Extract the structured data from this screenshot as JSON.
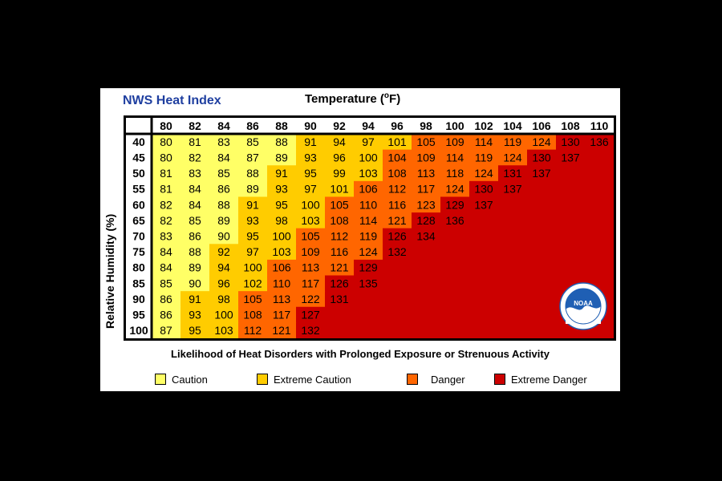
{
  "header": {
    "title": "NWS Heat Index",
    "temperature_label": "Temperature (",
    "temperature_degree": "o",
    "temperature_unit": "F)",
    "humidity_label": "Relative Humidity (%)"
  },
  "chart_data": {
    "type": "heatmap",
    "title": "NWS Heat Index",
    "xlabel": "Temperature (oF)",
    "ylabel": "Relative Humidity (%)",
    "x": [
      80,
      82,
      84,
      86,
      88,
      90,
      92,
      94,
      96,
      98,
      100,
      102,
      104,
      106,
      108,
      110
    ],
    "y": [
      40,
      45,
      50,
      55,
      60,
      65,
      70,
      75,
      80,
      85,
      90,
      95,
      100
    ],
    "values": [
      [
        80,
        81,
        83,
        85,
        88,
        91,
        94,
        97,
        101,
        105,
        109,
        114,
        119,
        124,
        130,
        136
      ],
      [
        80,
        82,
        84,
        87,
        89,
        93,
        96,
        100,
        104,
        109,
        114,
        119,
        124,
        130,
        137,
        null
      ],
      [
        81,
        83,
        85,
        88,
        91,
        95,
        99,
        103,
        108,
        113,
        118,
        124,
        131,
        137,
        null,
        null
      ],
      [
        81,
        84,
        86,
        89,
        93,
        97,
        101,
        106,
        112,
        117,
        124,
        130,
        137,
        null,
        null,
        null
      ],
      [
        82,
        84,
        88,
        91,
        95,
        100,
        105,
        110,
        116,
        123,
        129,
        137,
        null,
        null,
        null,
        null
      ],
      [
        82,
        85,
        89,
        93,
        98,
        103,
        108,
        114,
        121,
        128,
        136,
        null,
        null,
        null,
        null,
        null
      ],
      [
        83,
        86,
        90,
        95,
        100,
        105,
        112,
        119,
        126,
        134,
        null,
        null,
        null,
        null,
        null,
        null
      ],
      [
        84,
        88,
        92,
        97,
        103,
        109,
        116,
        124,
        132,
        null,
        null,
        null,
        null,
        null,
        null,
        null
      ],
      [
        84,
        89,
        94,
        100,
        106,
        113,
        121,
        129,
        null,
        null,
        null,
        null,
        null,
        null,
        null,
        null
      ],
      [
        85,
        90,
        96,
        102,
        110,
        117,
        126,
        135,
        null,
        null,
        null,
        null,
        null,
        null,
        null,
        null
      ],
      [
        86,
        91,
        98,
        105,
        113,
        122,
        131,
        null,
        null,
        null,
        null,
        null,
        null,
        null,
        null,
        null
      ],
      [
        86,
        93,
        100,
        108,
        117,
        127,
        null,
        null,
        null,
        null,
        null,
        null,
        null,
        null,
        null,
        null
      ],
      [
        87,
        95,
        103,
        112,
        121,
        132,
        null,
        null,
        null,
        null,
        null,
        null,
        null,
        null,
        null,
        null
      ]
    ],
    "categories_legend": [
      {
        "name": "Caution",
        "color": "#ffff66",
        "range": [
          80,
          90
        ]
      },
      {
        "name": "Extreme Caution",
        "color": "#ffcc00",
        "range": [
          91,
          103
        ]
      },
      {
        "name": "Danger",
        "color": "#ff6600",
        "range": [
          104,
          124
        ]
      },
      {
        "name": "Extreme Danger",
        "color": "#cc0000",
        "range": [
          125,
          137
        ]
      }
    ],
    "empty_color": "#cc0000"
  },
  "footer": {
    "disorders_title": "Likelihood of Heat Disorders with Prolonged Exposure or Strenuous Activity",
    "legend": [
      {
        "label": "Caution",
        "color": "#ffff66"
      },
      {
        "label": "Extreme Caution",
        "color": "#ffcc00"
      },
      {
        "label": "Danger",
        "color": "#ff6600"
      },
      {
        "label": "Extreme Danger",
        "color": "#cc0000"
      }
    ]
  },
  "logo": {
    "text": "NOAA",
    "icon": "noaa-logo-icon",
    "colors": {
      "ring": "#1f5fb4",
      "wave": "#ffffff",
      "sky": "#1f5fb4"
    }
  }
}
